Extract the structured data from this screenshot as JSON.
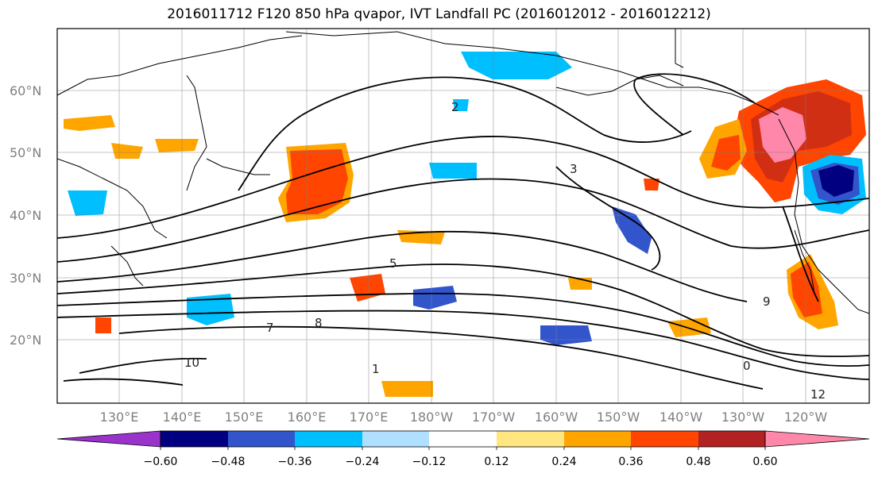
{
  "title": "2016011712 F120 850 hPa qvapor, IVT Landfall PC (2016012012 - 2016012212)",
  "latitude_labels": [
    "60°N",
    "50°N",
    "40°N",
    "30°N",
    "20°N"
  ],
  "longitude_labels": [
    "130°E",
    "140°E",
    "150°E",
    "160°E",
    "170°E",
    "180°W",
    "170°W",
    "160°W",
    "150°W",
    "140°W",
    "130°W",
    "120°W"
  ],
  "colorbar": {
    "tick_labels": [
      "−0.60",
      "−0.48",
      "−0.36",
      "−0.24",
      "−0.12",
      "0.12",
      "0.24",
      "0.36",
      "0.48",
      "0.60"
    ],
    "colors": [
      "#9933cc",
      "#000080",
      "#3355cc",
      "#00bfff",
      "#b0e0ff",
      "#ffffff",
      "#ffe680",
      "#ffa500",
      "#ff4500",
      "#b22222",
      "#ff88aa"
    ]
  },
  "contour_labels": [
    "2",
    "3",
    "5",
    "7",
    "8",
    "9",
    "10",
    "12",
    "0",
    "1"
  ]
}
